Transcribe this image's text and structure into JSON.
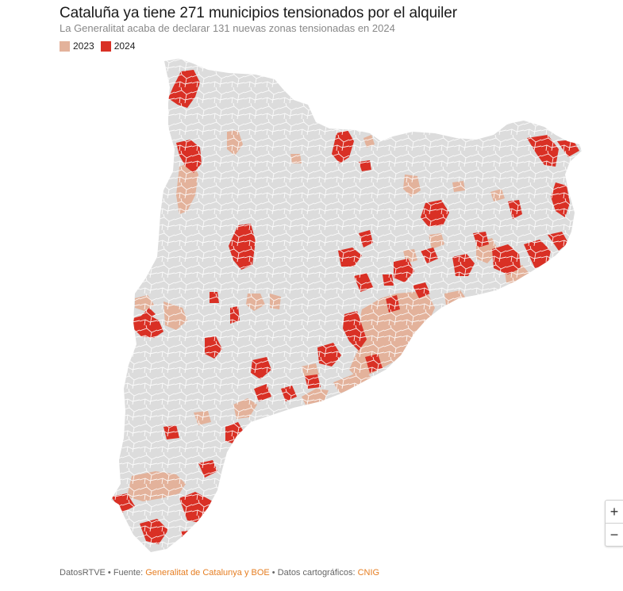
{
  "title": "Cataluña ya tiene 271 municipios tensionados por el alquiler",
  "subtitle": "La Generalitat acaba de declarar 131 nuevas zonas tensionadas en 2024",
  "legend": {
    "items": [
      {
        "label": "2023",
        "color": "#e3b29b"
      },
      {
        "label": "2024",
        "color": "#d93025"
      }
    ]
  },
  "map": {
    "base_color": "#dcdcdc",
    "border_color": "#ffffff"
  },
  "zoom": {
    "in_label": "+",
    "out_label": "−"
  },
  "footer": {
    "prefix": "DatosRTVE • Fuente: ",
    "source": "Generalitat de Catalunya y BOE",
    "middle": " • Datos cartográficos: ",
    "carto": "CNIG"
  }
}
